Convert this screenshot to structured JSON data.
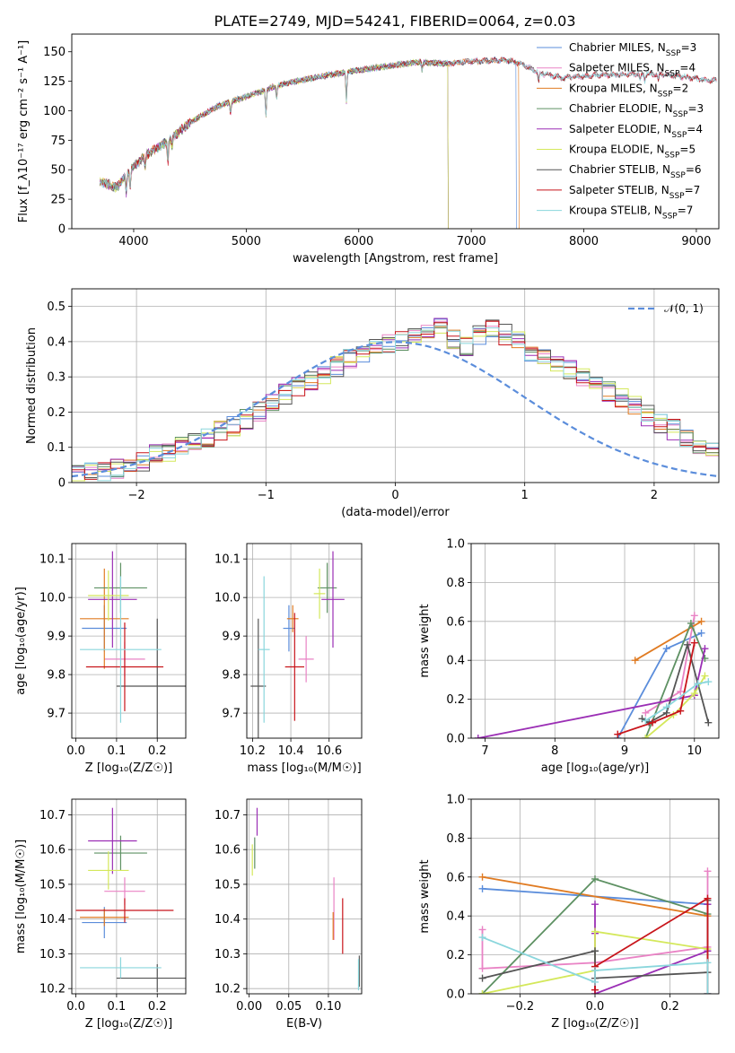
{
  "figure": {
    "title": "PLATE=2749, MJD=54241, FIBERID=0064, z=0.03"
  },
  "colors": {
    "Chabrier MILES": "#5b8ddb",
    "Salpeter MILES": "#e983c5",
    "Kroupa MILES": "#e07b22",
    "Chabrier ELODIE": "#5e9163",
    "Salpeter ELODIE": "#9b2fb5",
    "Kroupa ELODIE": "#d4e85b",
    "Chabrier STELIB": "#555555",
    "Salpeter STELIB": "#c8151b",
    "Kroupa STELIB": "#8ad6dc",
    "normal": "#5b8ddb",
    "grid": "#b0b0b0"
  },
  "chart_data": [
    {
      "id": "spectrum",
      "type": "line",
      "xlabel": "wavelength [Angstrom, rest frame]",
      "ylabel": "Flux [f_λ10⁻¹⁷ erg cm⁻² s⁻¹ A⁻¹]",
      "xlim": [
        3450,
        9200
      ],
      "ylim": [
        0,
        165
      ],
      "xticks": [
        4000,
        5000,
        6000,
        7000,
        8000,
        9000
      ],
      "yticks": [
        0,
        25,
        50,
        75,
        100,
        125,
        150
      ],
      "grid": false,
      "legend_position": "top-right",
      "continuum_knots": [
        [
          3700,
          40
        ],
        [
          3850,
          35
        ],
        [
          3950,
          48
        ],
        [
          4100,
          62
        ],
        [
          4300,
          74
        ],
        [
          4500,
          90
        ],
        [
          4750,
          104
        ],
        [
          5000,
          112
        ],
        [
          5300,
          122
        ],
        [
          5600,
          128
        ],
        [
          5900,
          133
        ],
        [
          6200,
          137
        ],
        [
          6500,
          141
        ],
        [
          6800,
          140
        ],
        [
          7000,
          142
        ],
        [
          7300,
          143
        ],
        [
          7450,
          140
        ],
        [
          7600,
          132
        ],
        [
          7800,
          128
        ],
        [
          8100,
          130
        ],
        [
          8400,
          131
        ],
        [
          8700,
          131
        ],
        [
          9100,
          126
        ]
      ],
      "absorption_lines": [
        [
          3934,
          15
        ],
        [
          3968,
          15
        ],
        [
          4101,
          10
        ],
        [
          4304,
          18
        ],
        [
          4340,
          8
        ],
        [
          4861,
          10
        ],
        [
          5175,
          22
        ],
        [
          5270,
          10
        ],
        [
          5890,
          25
        ],
        [
          6563,
          6
        ],
        [
          7600,
          8
        ],
        [
          8500,
          6
        ],
        [
          8542,
          6
        ],
        [
          8662,
          6
        ]
      ],
      "series": [
        {
          "name": "Chabrier MILES",
          "n_ssp": "3",
          "xmax": 7400
        },
        {
          "name": "Salpeter MILES",
          "n_ssp": "4",
          "xmax": 9180
        },
        {
          "name": "Kroupa MILES",
          "n_ssp": "2",
          "xmax": 7420
        },
        {
          "name": "Chabrier ELODIE",
          "n_ssp": "3",
          "xmax": 6790
        },
        {
          "name": "Salpeter ELODIE",
          "n_ssp": "4",
          "xmax": 6790
        },
        {
          "name": "Kroupa ELODIE",
          "n_ssp": "5",
          "xmax": 6790
        },
        {
          "name": "Chabrier STELIB",
          "n_ssp": "6",
          "xmax": 9180
        },
        {
          "name": "Salpeter STELIB",
          "n_ssp": "7",
          "xmax": 9180
        },
        {
          "name": "Kroupa STELIB",
          "n_ssp": "7",
          "xmax": 9180
        }
      ]
    },
    {
      "id": "residuals",
      "type": "histogram",
      "xlabel": "(data-model)/error",
      "ylabel": "Normed distribution",
      "xlim": [
        -2.5,
        2.5
      ],
      "ylim": [
        0,
        0.55
      ],
      "xticks": [
        -2,
        -1,
        0,
        1,
        2
      ],
      "yticks": [
        0.0,
        0.1,
        0.2,
        0.3,
        0.4,
        0.5
      ],
      "grid": true,
      "bin_width": 0.1,
      "legend": {
        "label": "𝒩(0, 1)",
        "position": "top-right"
      },
      "mean_bins": [
        0.02,
        0.03,
        0.03,
        0.04,
        0.05,
        0.06,
        0.08,
        0.09,
        0.1,
        0.12,
        0.13,
        0.15,
        0.16,
        0.18,
        0.2,
        0.22,
        0.25,
        0.27,
        0.29,
        0.31,
        0.33,
        0.35,
        0.37,
        0.38,
        0.39,
        0.4,
        0.41,
        0.43,
        0.45,
        0.41,
        0.39,
        0.42,
        0.44,
        0.42,
        0.4,
        0.37,
        0.36,
        0.34,
        0.32,
        0.3,
        0.28,
        0.26,
        0.24,
        0.22,
        0.19,
        0.17,
        0.15,
        0.13,
        0.11,
        0.1,
        0.08,
        0.07,
        0.06,
        0.05,
        0.04,
        0.04,
        0.03,
        0.03,
        0.03,
        0.02
      ]
    },
    {
      "id": "Z-age",
      "type": "errorbar",
      "xlabel": "Z [log₁₀(Z/Z☉)]",
      "ylabel": "age  [log₁₀(age/yr)]",
      "xlim": [
        -0.01,
        0.27
      ],
      "ylim": [
        9.635,
        10.14
      ],
      "xticks": [
        0.0,
        0.1,
        0.2
      ],
      "yticks": [
        9.7,
        9.8,
        9.9,
        10.0,
        10.1
      ],
      "tick_labels_x": [
        "0.0",
        "0.1",
        "0.2"
      ],
      "tick_labels_y": [
        "9.7",
        "9.8",
        "9.9",
        "10.0",
        "10.1"
      ],
      "points": [
        {
          "series": "Chabrier MILES",
          "x": 0.07,
          "y": 9.92,
          "xerr": 0.055,
          "yerr": 0.06
        },
        {
          "series": "Salpeter MILES",
          "x": 0.12,
          "y": 9.84,
          "xerr": 0.05,
          "yerr": 0.045
        },
        {
          "series": "Kroupa MILES",
          "x": 0.07,
          "y": 9.945,
          "xerr": 0.06,
          "yerr": 0.13
        },
        {
          "series": "Chabrier ELODIE",
          "x": 0.11,
          "y": 10.025,
          "xerr": 0.065,
          "yerr": 0.065
        },
        {
          "series": "Salpeter ELODIE",
          "x": 0.09,
          "y": 9.995,
          "xerr": 0.06,
          "yerr": 0.125
        },
        {
          "series": "Kroupa ELODIE",
          "x": 0.08,
          "y": 10.005,
          "xerr": 0.05,
          "yerr": 0.065
        },
        {
          "series": "Chabrier STELIB",
          "x": 0.2,
          "y": 9.77,
          "xerr": 0.1,
          "yerr": 0.175
        },
        {
          "series": "Salpeter STELIB",
          "x": 0.12,
          "y": 9.82,
          "xerr": 0.095,
          "yerr": 0.115
        },
        {
          "series": "Kroupa STELIB",
          "x": 0.11,
          "y": 9.865,
          "xerr": 0.1,
          "yerr": 0.19
        }
      ]
    },
    {
      "id": "mass-age",
      "type": "errorbar",
      "xlabel": "mass [log₁₀(M/M☉)]",
      "ylabel": "",
      "xlim": [
        10.17,
        10.77
      ],
      "ylim": [
        9.635,
        10.14
      ],
      "xticks": [
        10.2,
        10.4,
        10.6
      ],
      "yticks": [
        9.7,
        9.8,
        9.9,
        10.0,
        10.1
      ],
      "tick_labels_x": [
        "10.2",
        "10.4",
        "10.6"
      ],
      "tick_labels_y": [
        "9.7",
        "9.8",
        "9.9",
        "10.0",
        "10.1"
      ],
      "points": [
        {
          "series": "Chabrier MILES",
          "x": 10.39,
          "y": 9.92,
          "xerr": 0.03,
          "yerr": 0.06
        },
        {
          "series": "Salpeter MILES",
          "x": 10.48,
          "y": 9.84,
          "xerr": 0.04,
          "yerr": 0.06
        },
        {
          "series": "Kroupa MILES",
          "x": 10.41,
          "y": 9.945,
          "xerr": 0.03,
          "yerr": 0.035
        },
        {
          "series": "Chabrier ELODIE",
          "x": 10.59,
          "y": 10.025,
          "xerr": 0.05,
          "yerr": 0.065
        },
        {
          "series": "Salpeter ELODIE",
          "x": 10.62,
          "y": 9.995,
          "xerr": 0.06,
          "yerr": 0.125
        },
        {
          "series": "Kroupa ELODIE",
          "x": 10.55,
          "y": 10.01,
          "xerr": 0.03,
          "yerr": 0.065
        },
        {
          "series": "Chabrier STELIB",
          "x": 10.23,
          "y": 9.77,
          "xerr": 0.04,
          "yerr": 0.175
        },
        {
          "series": "Salpeter STELIB",
          "x": 10.42,
          "y": 9.82,
          "xerr": 0.05,
          "yerr": 0.14
        },
        {
          "series": "Kroupa STELIB",
          "x": 10.26,
          "y": 9.865,
          "xerr": 0.03,
          "yerr": 0.19
        }
      ]
    },
    {
      "id": "age-weight",
      "type": "line",
      "xlabel": "age  [log₁₀(age/yr)]",
      "ylabel": "mass weight",
      "xlim": [
        6.8,
        10.35
      ],
      "ylim": [
        0,
        1.0
      ],
      "xticks": [
        7,
        8,
        9,
        10
      ],
      "yticks": [
        0.0,
        0.2,
        0.4,
        0.6,
        0.8,
        1.0
      ],
      "tick_labels_x": [
        "7",
        "8",
        "9",
        "10"
      ],
      "tick_labels_y": [
        "0.0",
        "0.2",
        "0.4",
        "0.6",
        "0.8",
        "1.0"
      ],
      "series": [
        {
          "name": "Chabrier MILES",
          "x": [
            8.9,
            9.6,
            10.1
          ],
          "y": [
            0.0,
            0.46,
            0.54
          ]
        },
        {
          "name": "Salpeter MILES",
          "x": [
            9.3,
            9.8,
            10.0
          ],
          "y": [
            0.13,
            0.24,
            0.63
          ]
        },
        {
          "name": "Kroupa MILES",
          "x": [
            9.15,
            10.1
          ],
          "y": [
            0.4,
            0.6
          ]
        },
        {
          "name": "Chabrier ELODIE",
          "x": [
            9.3,
            9.95,
            10.15
          ],
          "y": [
            0.0,
            0.59,
            0.41
          ]
        },
        {
          "name": "Salpeter ELODIE",
          "x": [
            6.9,
            10.0,
            10.15
          ],
          "y": [
            0.0,
            0.22,
            0.46
          ]
        },
        {
          "name": "Kroupa ELODIE",
          "x": [
            9.3,
            9.7,
            10.0,
            10.15
          ],
          "y": [
            0.0,
            0.12,
            0.23,
            0.32
          ]
        },
        {
          "name": "Chabrier STELIB",
          "x": [
            9.25,
            9.35,
            9.6,
            9.9,
            10.2
          ],
          "y": [
            0.1,
            0.08,
            0.13,
            0.48,
            0.08
          ]
        },
        {
          "name": "Salpeter STELIB",
          "x": [
            8.9,
            9.4,
            9.8,
            10.0
          ],
          "y": [
            0.02,
            0.08,
            0.14,
            0.49
          ]
        },
        {
          "name": "Kroupa STELIB",
          "x": [
            9.3,
            9.6,
            10.05,
            10.2
          ],
          "y": [
            0.09,
            0.16,
            0.28,
            0.29
          ]
        }
      ]
    },
    {
      "id": "Z-mass",
      "type": "errorbar",
      "xlabel": "Z [log₁₀(Z/Z☉)]",
      "ylabel": "mass [log₁₀(M/M☉)]",
      "xlim": [
        -0.01,
        0.27
      ],
      "ylim": [
        10.185,
        10.745
      ],
      "xticks": [
        0.0,
        0.1,
        0.2
      ],
      "yticks": [
        10.2,
        10.3,
        10.4,
        10.5,
        10.6,
        10.7
      ],
      "tick_labels_x": [
        "0.0",
        "0.1",
        "0.2"
      ],
      "tick_labels_y": [
        "10.2",
        "10.3",
        "10.4",
        "10.5",
        "10.6",
        "10.7"
      ],
      "points": [
        {
          "series": "Chabrier MILES",
          "x": 0.07,
          "y": 10.39,
          "xerr": 0.055,
          "yerr": 0.045
        },
        {
          "series": "Salpeter MILES",
          "x": 0.12,
          "y": 10.48,
          "xerr": 0.05,
          "yerr": 0.04
        },
        {
          "series": "Kroupa MILES",
          "x": 0.07,
          "y": 10.405,
          "xerr": 0.06,
          "yerr": 0.025
        },
        {
          "series": "Chabrier ELODIE",
          "x": 0.11,
          "y": 10.59,
          "xerr": 0.065,
          "yerr": 0.05
        },
        {
          "series": "Salpeter ELODIE",
          "x": 0.09,
          "y": 10.625,
          "xerr": 0.06,
          "yerr": 0.095
        },
        {
          "series": "Kroupa ELODIE",
          "x": 0.08,
          "y": 10.54,
          "xerr": 0.05,
          "yerr": 0.055
        },
        {
          "series": "Chabrier STELIB",
          "x": 0.2,
          "y": 10.23,
          "xerr": 0.1,
          "yerr": 0.04
        },
        {
          "series": "Salpeter STELIB",
          "x": 0.12,
          "y": 10.425,
          "xerr": 0.12,
          "yerr": 0.035
        },
        {
          "series": "Kroupa STELIB",
          "x": 0.11,
          "y": 10.26,
          "xerr": 0.1,
          "yerr": 0.03
        }
      ]
    },
    {
      "id": "ebv-mass",
      "type": "errorbar",
      "xlabel": "E(B-V)",
      "ylabel": "",
      "xlim": [
        -0.003,
        0.142
      ],
      "ylim": [
        10.185,
        10.745
      ],
      "xticks": [
        0.0,
        0.05,
        0.1
      ],
      "yticks": [
        10.2,
        10.3,
        10.4,
        10.5,
        10.6,
        10.7
      ],
      "tick_labels_x": [
        "0.00",
        "0.05",
        "0.10"
      ],
      "tick_labels_y": [
        "10.2",
        "10.3",
        "10.4",
        "10.5",
        "10.6",
        "10.7"
      ],
      "points": [
        {
          "series": "Salpeter ELODIE",
          "x": 0.01,
          "y": 10.68,
          "xerr": 0,
          "yerr": 0.04
        },
        {
          "series": "Chabrier ELODIE",
          "x": 0.007,
          "y": 10.59,
          "xerr": 0,
          "yerr": 0.045
        },
        {
          "series": "Kroupa ELODIE",
          "x": 0.004,
          "y": 10.57,
          "xerr": 0,
          "yerr": 0.045
        },
        {
          "series": "Salpeter MILES",
          "x": 0.107,
          "y": 10.43,
          "xerr": 0,
          "yerr": 0.09
        },
        {
          "series": "Kroupa MILES",
          "x": 0.106,
          "y": 10.38,
          "xerr": 0,
          "yerr": 0.04
        },
        {
          "series": "Salpeter STELIB",
          "x": 0.118,
          "y": 10.38,
          "xerr": 0,
          "yerr": 0.08
        },
        {
          "series": "Chabrier STELIB",
          "x": 0.139,
          "y": 10.25,
          "xerr": 0,
          "yerr": 0.045
        },
        {
          "series": "Kroupa STELIB",
          "x": 0.138,
          "y": 10.24,
          "xerr": 0,
          "yerr": 0.045
        }
      ]
    },
    {
      "id": "Z-weight",
      "type": "line",
      "xlabel": "Z [log₁₀(Z/Z☉)]",
      "ylabel": "mass weight",
      "xlim": [
        -0.33,
        0.33
      ],
      "ylim": [
        0,
        1.0
      ],
      "xticks": [
        -0.2,
        0.0,
        0.2
      ],
      "yticks": [
        0.0,
        0.2,
        0.4,
        0.6,
        0.8,
        1.0
      ],
      "tick_labels_x": [
        "−0.2",
        "0.0",
        "0.2"
      ],
      "tick_labels_y": [
        "0.0",
        "0.2",
        "0.4",
        "0.6",
        "0.8",
        "1.0"
      ],
      "series": [
        {
          "name": "Chabrier MILES",
          "x": [
            -0.3,
            0.3,
            0.3
          ],
          "y": [
            0.54,
            0.46,
            0.0
          ]
        },
        {
          "name": "Salpeter MILES",
          "x": [
            -0.3,
            -0.3,
            0.0,
            0.3,
            0.3
          ],
          "y": [
            0.33,
            0.13,
            0.16,
            0.24,
            0.63
          ]
        },
        {
          "name": "Kroupa MILES",
          "x": [
            -0.3,
            0.3
          ],
          "y": [
            0.6,
            0.4
          ]
        },
        {
          "name": "Chabrier ELODIE",
          "x": [
            -0.3,
            0.0,
            0.3
          ],
          "y": [
            0.0,
            0.59,
            0.41
          ]
        },
        {
          "name": "Salpeter ELODIE",
          "x": [
            0.0,
            0.0,
            0.0,
            0.3,
            0.3
          ],
          "y": [
            0.46,
            0.31,
            0.0,
            0.22,
            0.46
          ]
        },
        {
          "name": "Kroupa ELODIE",
          "x": [
            -0.3,
            0.0,
            0.0,
            0.3
          ],
          "y": [
            0.0,
            0.12,
            0.32,
            0.23
          ]
        },
        {
          "name": "Chabrier STELIB",
          "x": [
            -0.3,
            0.0,
            0.0,
            0.3,
            0.3
          ],
          "y": [
            0.08,
            0.22,
            0.08,
            0.11,
            0.48
          ]
        },
        {
          "name": "Salpeter STELIB",
          "x": [
            0.0,
            0.0,
            0.3,
            0.3
          ],
          "y": [
            0.02,
            0.14,
            0.49,
            0.0
          ]
        },
        {
          "name": "Kroupa STELIB",
          "x": [
            -0.3,
            0.0,
            0.0,
            0.3,
            0.3
          ],
          "y": [
            0.29,
            0.06,
            0.12,
            0.16,
            0.0
          ]
        }
      ]
    }
  ]
}
